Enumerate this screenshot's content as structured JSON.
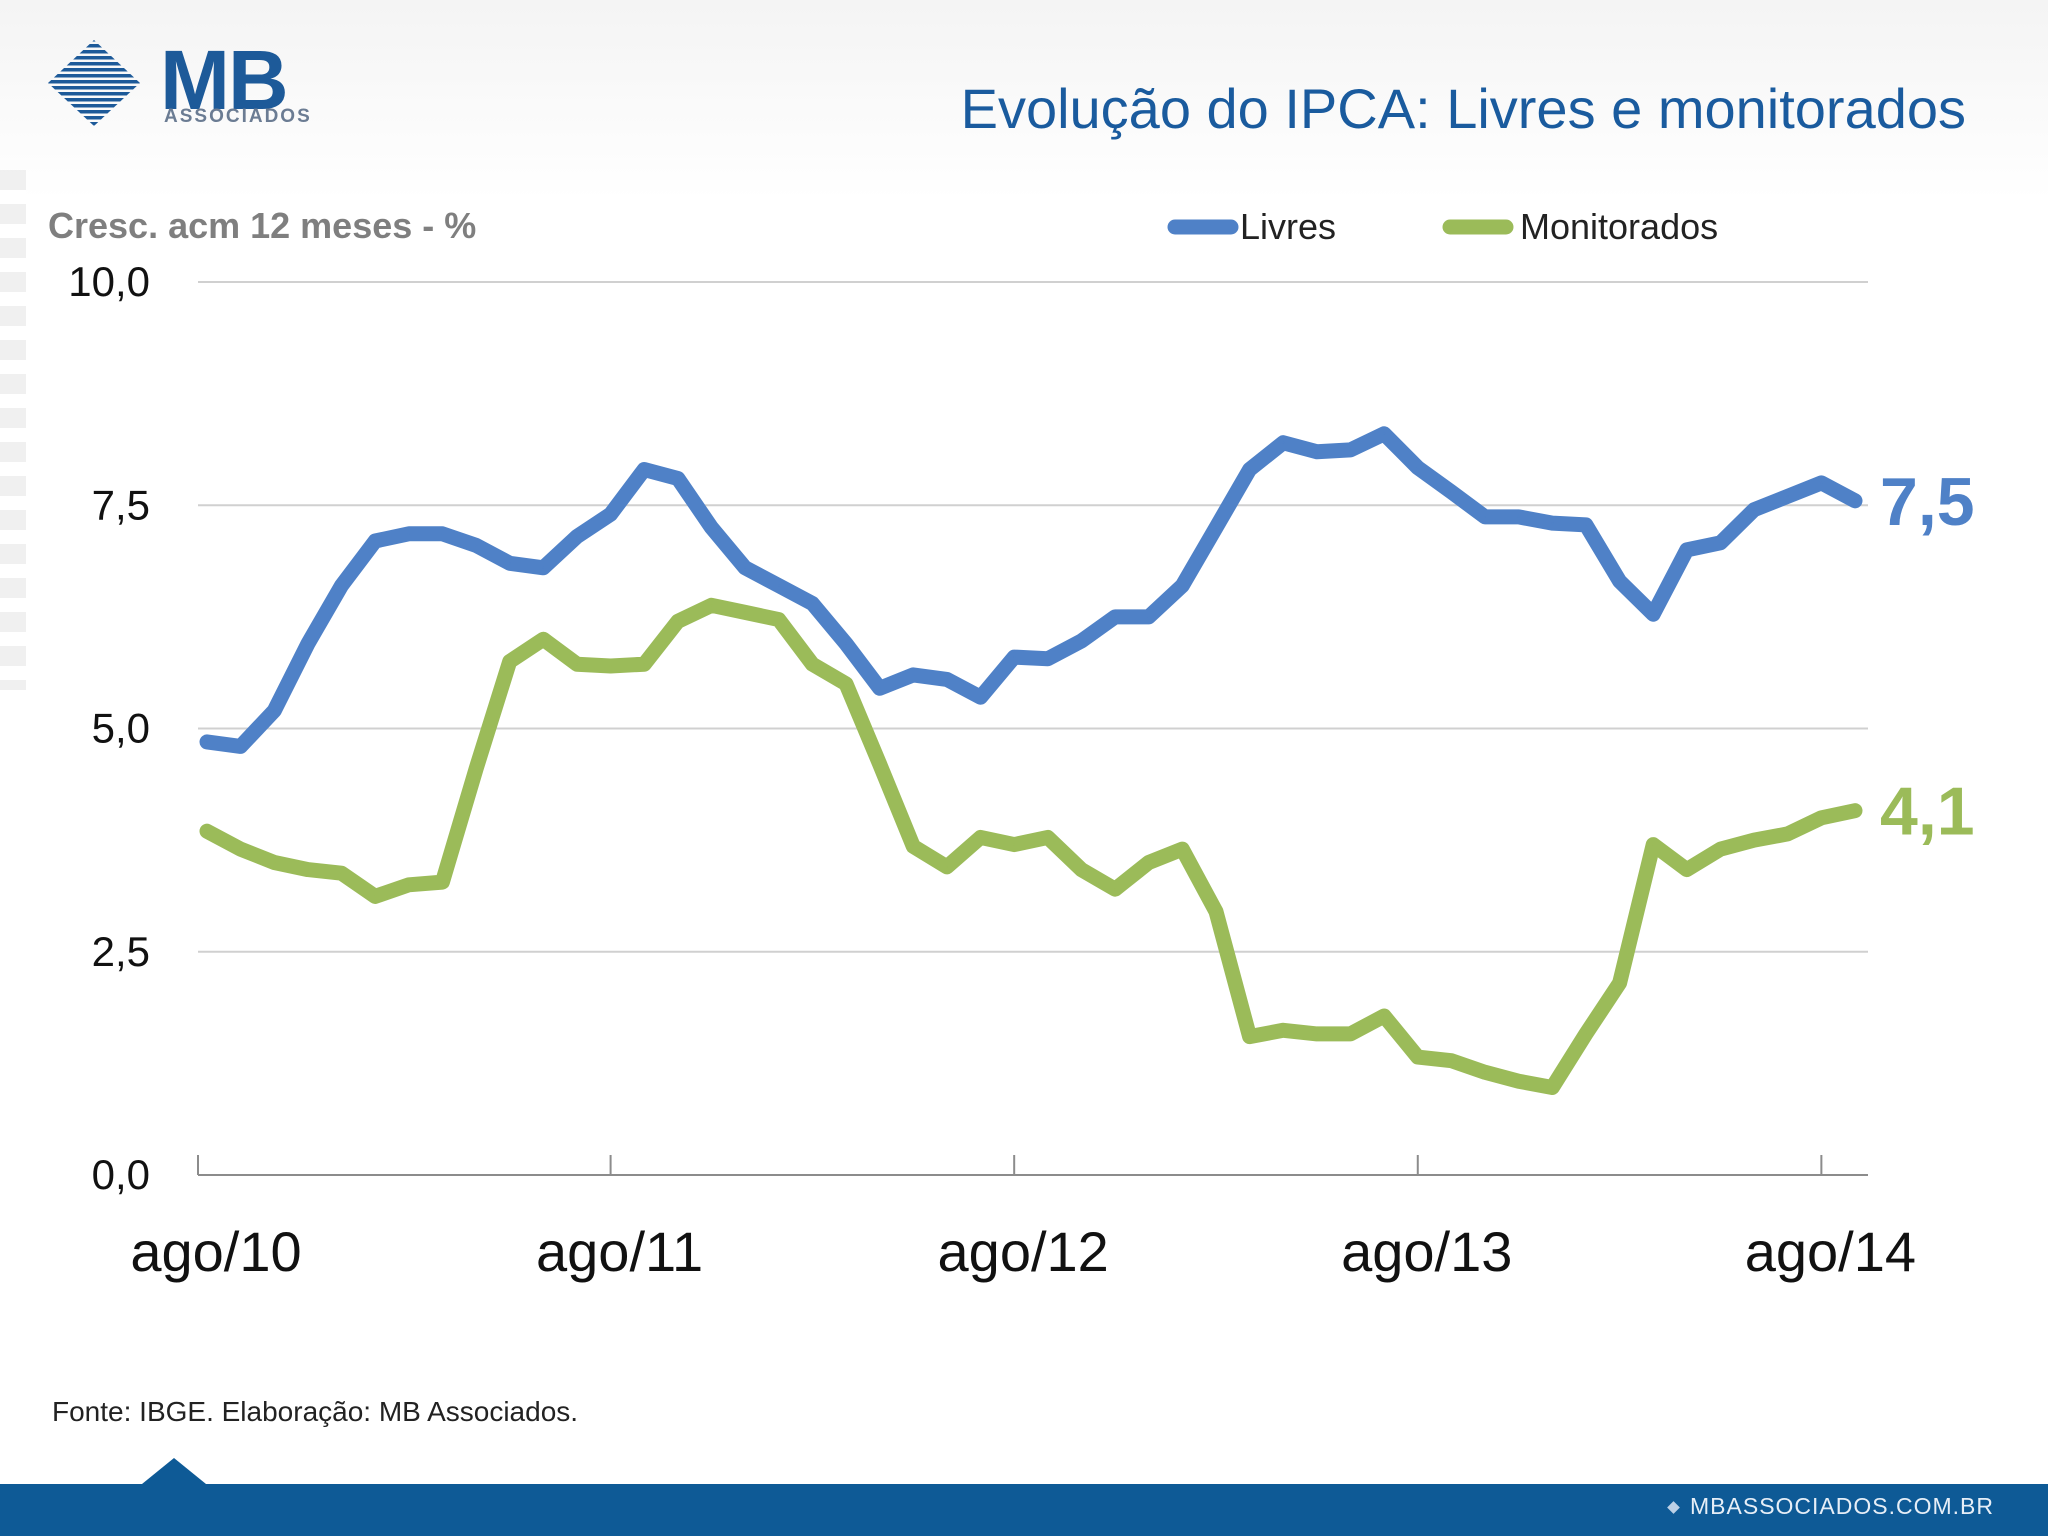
{
  "logo": {
    "main": "MB",
    "sub": "ASSOCIADOS"
  },
  "slide_title": "Evolução do IPCA: Livres e monitorados",
  "source": "Fonte: IBGE. Elaboração: MB Associados.",
  "footer": {
    "site": "MBASSOCIADOS.COM.BR"
  },
  "colors": {
    "livres": "#4f81c7",
    "monitorados": "#9bbb59",
    "title": "#1a5b9e",
    "footer": "#0e5a96"
  },
  "chart_data": {
    "type": "line",
    "ylabel": "Cresc. acm 12 meses - %",
    "ylim": [
      0,
      10
    ],
    "y_ticks": [
      "10,0",
      "7,5",
      "5,0",
      "2,5",
      "0,0"
    ],
    "y_tick_values": [
      10,
      7.5,
      5,
      2.5,
      0
    ],
    "x_tick_labels": [
      "ago/10",
      "ago/11",
      "ago/12",
      "ago/13",
      "ago/14"
    ],
    "x_tick_index": [
      0,
      12,
      24,
      36,
      48
    ],
    "legend_position": "top-right",
    "grid": true,
    "series": [
      {
        "name": "Livres",
        "end_label": "7,5",
        "values": [
          4.85,
          4.8,
          5.2,
          5.95,
          6.6,
          7.1,
          7.18,
          7.18,
          7.05,
          6.85,
          6.8,
          7.15,
          7.4,
          7.9,
          7.8,
          7.25,
          6.8,
          6.6,
          6.4,
          5.95,
          5.45,
          5.6,
          5.55,
          5.35,
          5.8,
          5.78,
          5.98,
          6.25,
          6.25,
          6.6,
          7.25,
          7.9,
          8.2,
          8.1,
          8.12,
          8.3,
          7.92,
          7.65,
          7.37,
          7.37,
          7.3,
          7.28,
          6.65,
          6.28,
          7.0,
          7.08,
          7.45,
          7.6,
          7.75,
          7.55
        ]
      },
      {
        "name": "Monitorados",
        "end_label": "4,1",
        "values": [
          3.85,
          3.65,
          3.5,
          3.42,
          3.38,
          3.12,
          3.25,
          3.28,
          4.55,
          5.75,
          6.0,
          5.72,
          5.7,
          5.72,
          6.2,
          6.38,
          6.3,
          6.22,
          5.72,
          5.5,
          4.6,
          3.68,
          3.45,
          3.78,
          3.7,
          3.78,
          3.42,
          3.2,
          3.5,
          3.65,
          2.95,
          1.55,
          1.62,
          1.58,
          1.58,
          1.78,
          1.32,
          1.28,
          1.15,
          1.05,
          0.98,
          1.58,
          2.15,
          3.7,
          3.42,
          3.65,
          3.75,
          3.82,
          4.0,
          4.08
        ]
      }
    ]
  }
}
